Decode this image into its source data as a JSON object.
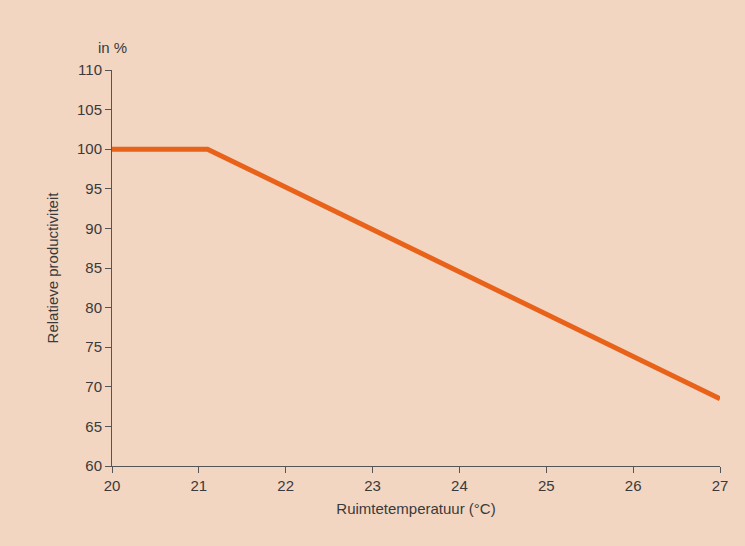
{
  "chart_data": {
    "type": "line",
    "x_label": "Ruimtetemperatuur (°C)",
    "y_label": "Relatieve productiviteit",
    "annotations": [
      "in %"
    ],
    "x": [
      20,
      21.1,
      27
    ],
    "values": [
      100,
      100,
      68.5
    ],
    "color": "#e8621a",
    "xlim": [
      20,
      27
    ],
    "xticks": [
      20,
      21,
      22,
      23,
      24,
      25,
      26,
      27
    ],
    "ylim": [
      60,
      110
    ],
    "yticks": [
      60,
      65,
      70,
      75,
      80,
      85,
      90,
      95,
      100,
      105,
      110
    ],
    "grid": false
  }
}
